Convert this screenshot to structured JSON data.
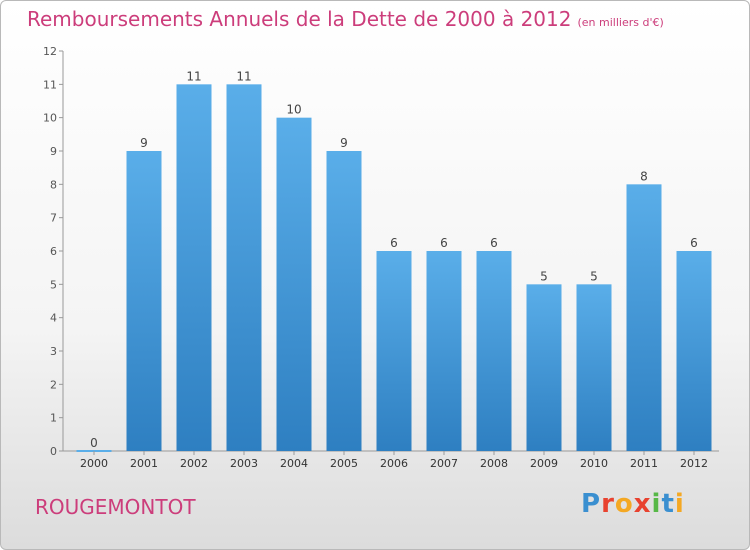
{
  "header": {
    "title": "Remboursements Annuels de la Dette de 2000 à 2012",
    "unit_note": "(en milliers d'€)"
  },
  "footer": {
    "commune": "ROUGEMONTOT",
    "logo_text": "Proxiti"
  },
  "colors": {
    "title": "#cc3d7b",
    "bar_top": "#5aaee9",
    "bar_bottom": "#2e7fc1"
  },
  "chart_data": {
    "type": "bar",
    "title": "Remboursements Annuels de la Dette de 2000 à 2012",
    "subtitle": "(en milliers d'€)",
    "categories": [
      "2000",
      "2001",
      "2002",
      "2003",
      "2004",
      "2005",
      "2006",
      "2007",
      "2008",
      "2009",
      "2010",
      "2011",
      "2012"
    ],
    "values": [
      0,
      9,
      11,
      11,
      10,
      9,
      6,
      6,
      6,
      5,
      5,
      8,
      6
    ],
    "ylim": [
      0,
      12
    ],
    "yticks": [
      0,
      1,
      2,
      3,
      4,
      5,
      6,
      7,
      8,
      9,
      10,
      11,
      12
    ],
    "grid": false,
    "data_labels": true
  }
}
